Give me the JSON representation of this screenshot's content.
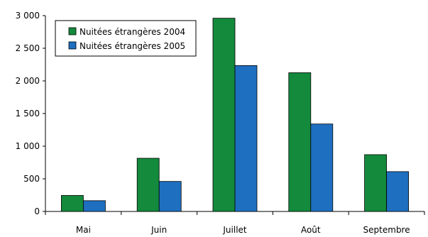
{
  "chart_data": {
    "type": "bar",
    "title": "",
    "xlabel": "",
    "ylabel": "",
    "categories": [
      "Mai",
      "Juin",
      "Juillet",
      "Août",
      "Septembre"
    ],
    "series": [
      {
        "name": "Nuitées étrangères 2004",
        "color": "#138a3c",
        "values": [
          245,
          815,
          2960,
          2125,
          870
        ]
      },
      {
        "name": "Nuitées étrangères 2005",
        "color": "#1e6fc0",
        "values": [
          165,
          460,
          2235,
          1340,
          610
        ]
      }
    ],
    "ylim": [
      0,
      3000
    ],
    "yticks": [
      0,
      500,
      1000,
      1500,
      2000,
      2500,
      3000
    ],
    "ytick_labels": [
      "0",
      "500",
      "1 000",
      "1 500",
      "2 000",
      "2 500",
      "3 000"
    ],
    "grid": false,
    "legend_position": "top-left"
  }
}
